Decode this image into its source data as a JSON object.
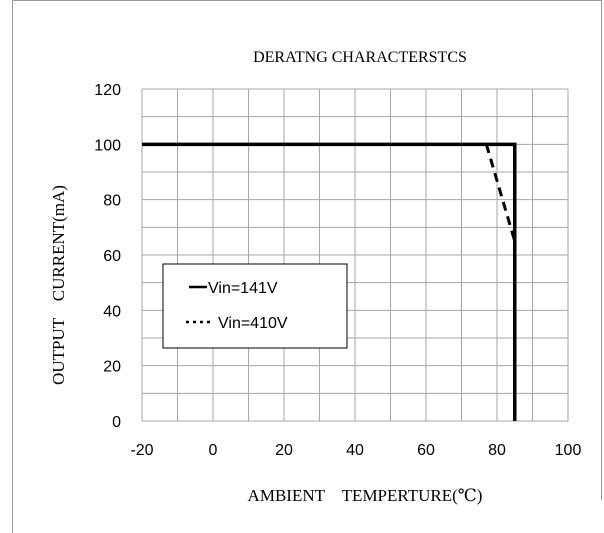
{
  "chart_data": {
    "type": "line",
    "title": "DERATNG CHARACTERSTCS",
    "xlabel": "AMBIENT　TEMPERTURE(℃)",
    "ylabel": "OUTPUT　CURRENT(mA)",
    "xlim": [
      -20,
      100
    ],
    "ylim": [
      0,
      120
    ],
    "x_ticks": [
      "-20",
      "0",
      "20",
      "40",
      "60",
      "80",
      "100"
    ],
    "y_ticks": [
      "0",
      "20",
      "40",
      "60",
      "80",
      "100",
      "120"
    ],
    "grid": true,
    "legend_position": "left-middle",
    "series": [
      {
        "name": "Vin=141V",
        "style": "solid",
        "x": [
          -20,
          85,
          85
        ],
        "y": [
          100,
          100,
          0
        ]
      },
      {
        "name": "Vin=410V",
        "style": "dashed",
        "x": [
          77,
          85
        ],
        "y": [
          100,
          65
        ]
      }
    ]
  },
  "colors": {
    "line": "#000000",
    "grid": "#a6a6a6",
    "frame": "#9a9a9a"
  }
}
